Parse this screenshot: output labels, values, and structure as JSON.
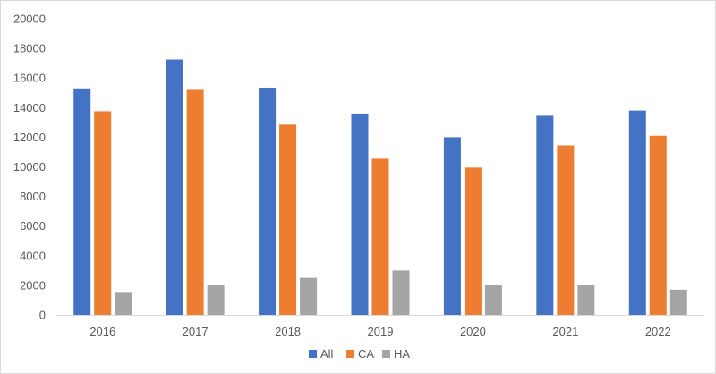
{
  "chart_data": {
    "type": "bar",
    "title": "",
    "xlabel": "",
    "ylabel": "",
    "categories": [
      "2016",
      "2017",
      "2018",
      "2019",
      "2020",
      "2021",
      "2022"
    ],
    "ylim": [
      0,
      20000
    ],
    "yticks": [
      0,
      2000,
      4000,
      6000,
      8000,
      10000,
      12000,
      14000,
      16000,
      18000,
      20000
    ],
    "ytick_labels": [
      "0",
      "2000",
      "4000",
      "6000",
      "8000",
      "10000",
      "12000",
      "14000",
      "16000",
      "18000",
      "20000"
    ],
    "grid": false,
    "legend_position": "bottom",
    "series": [
      {
        "name": "All",
        "color": "#4472c4",
        "values": [
          15300,
          17250,
          15350,
          13600,
          12000,
          13450,
          13800
        ]
      },
      {
        "name": "CA",
        "color": "#ed7d31",
        "values": [
          13750,
          15200,
          12850,
          10550,
          9950,
          11450,
          12100
        ]
      },
      {
        "name": "HA",
        "color": "#a5a5a5",
        "values": [
          1550,
          2050,
          2500,
          3000,
          2050,
          2000,
          1700
        ]
      }
    ]
  }
}
